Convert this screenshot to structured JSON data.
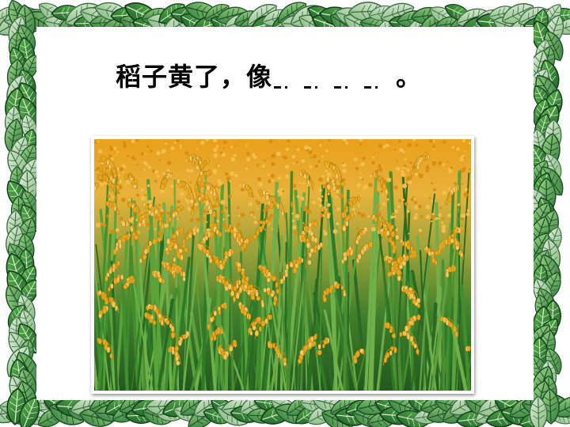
{
  "slide": {
    "title_prefix": "稻子黄了，像",
    "title_suffix": "。"
  },
  "colors": {
    "leaf_dark": "#2f7a3a",
    "leaf_light": "#8ccf6a",
    "leaf_pale": "#cfe6c4",
    "grain_gold": "#e9a91c",
    "stalk_green": "#3f8f2c"
  },
  "photo": {
    "subject": "golden-rice-paddy"
  }
}
